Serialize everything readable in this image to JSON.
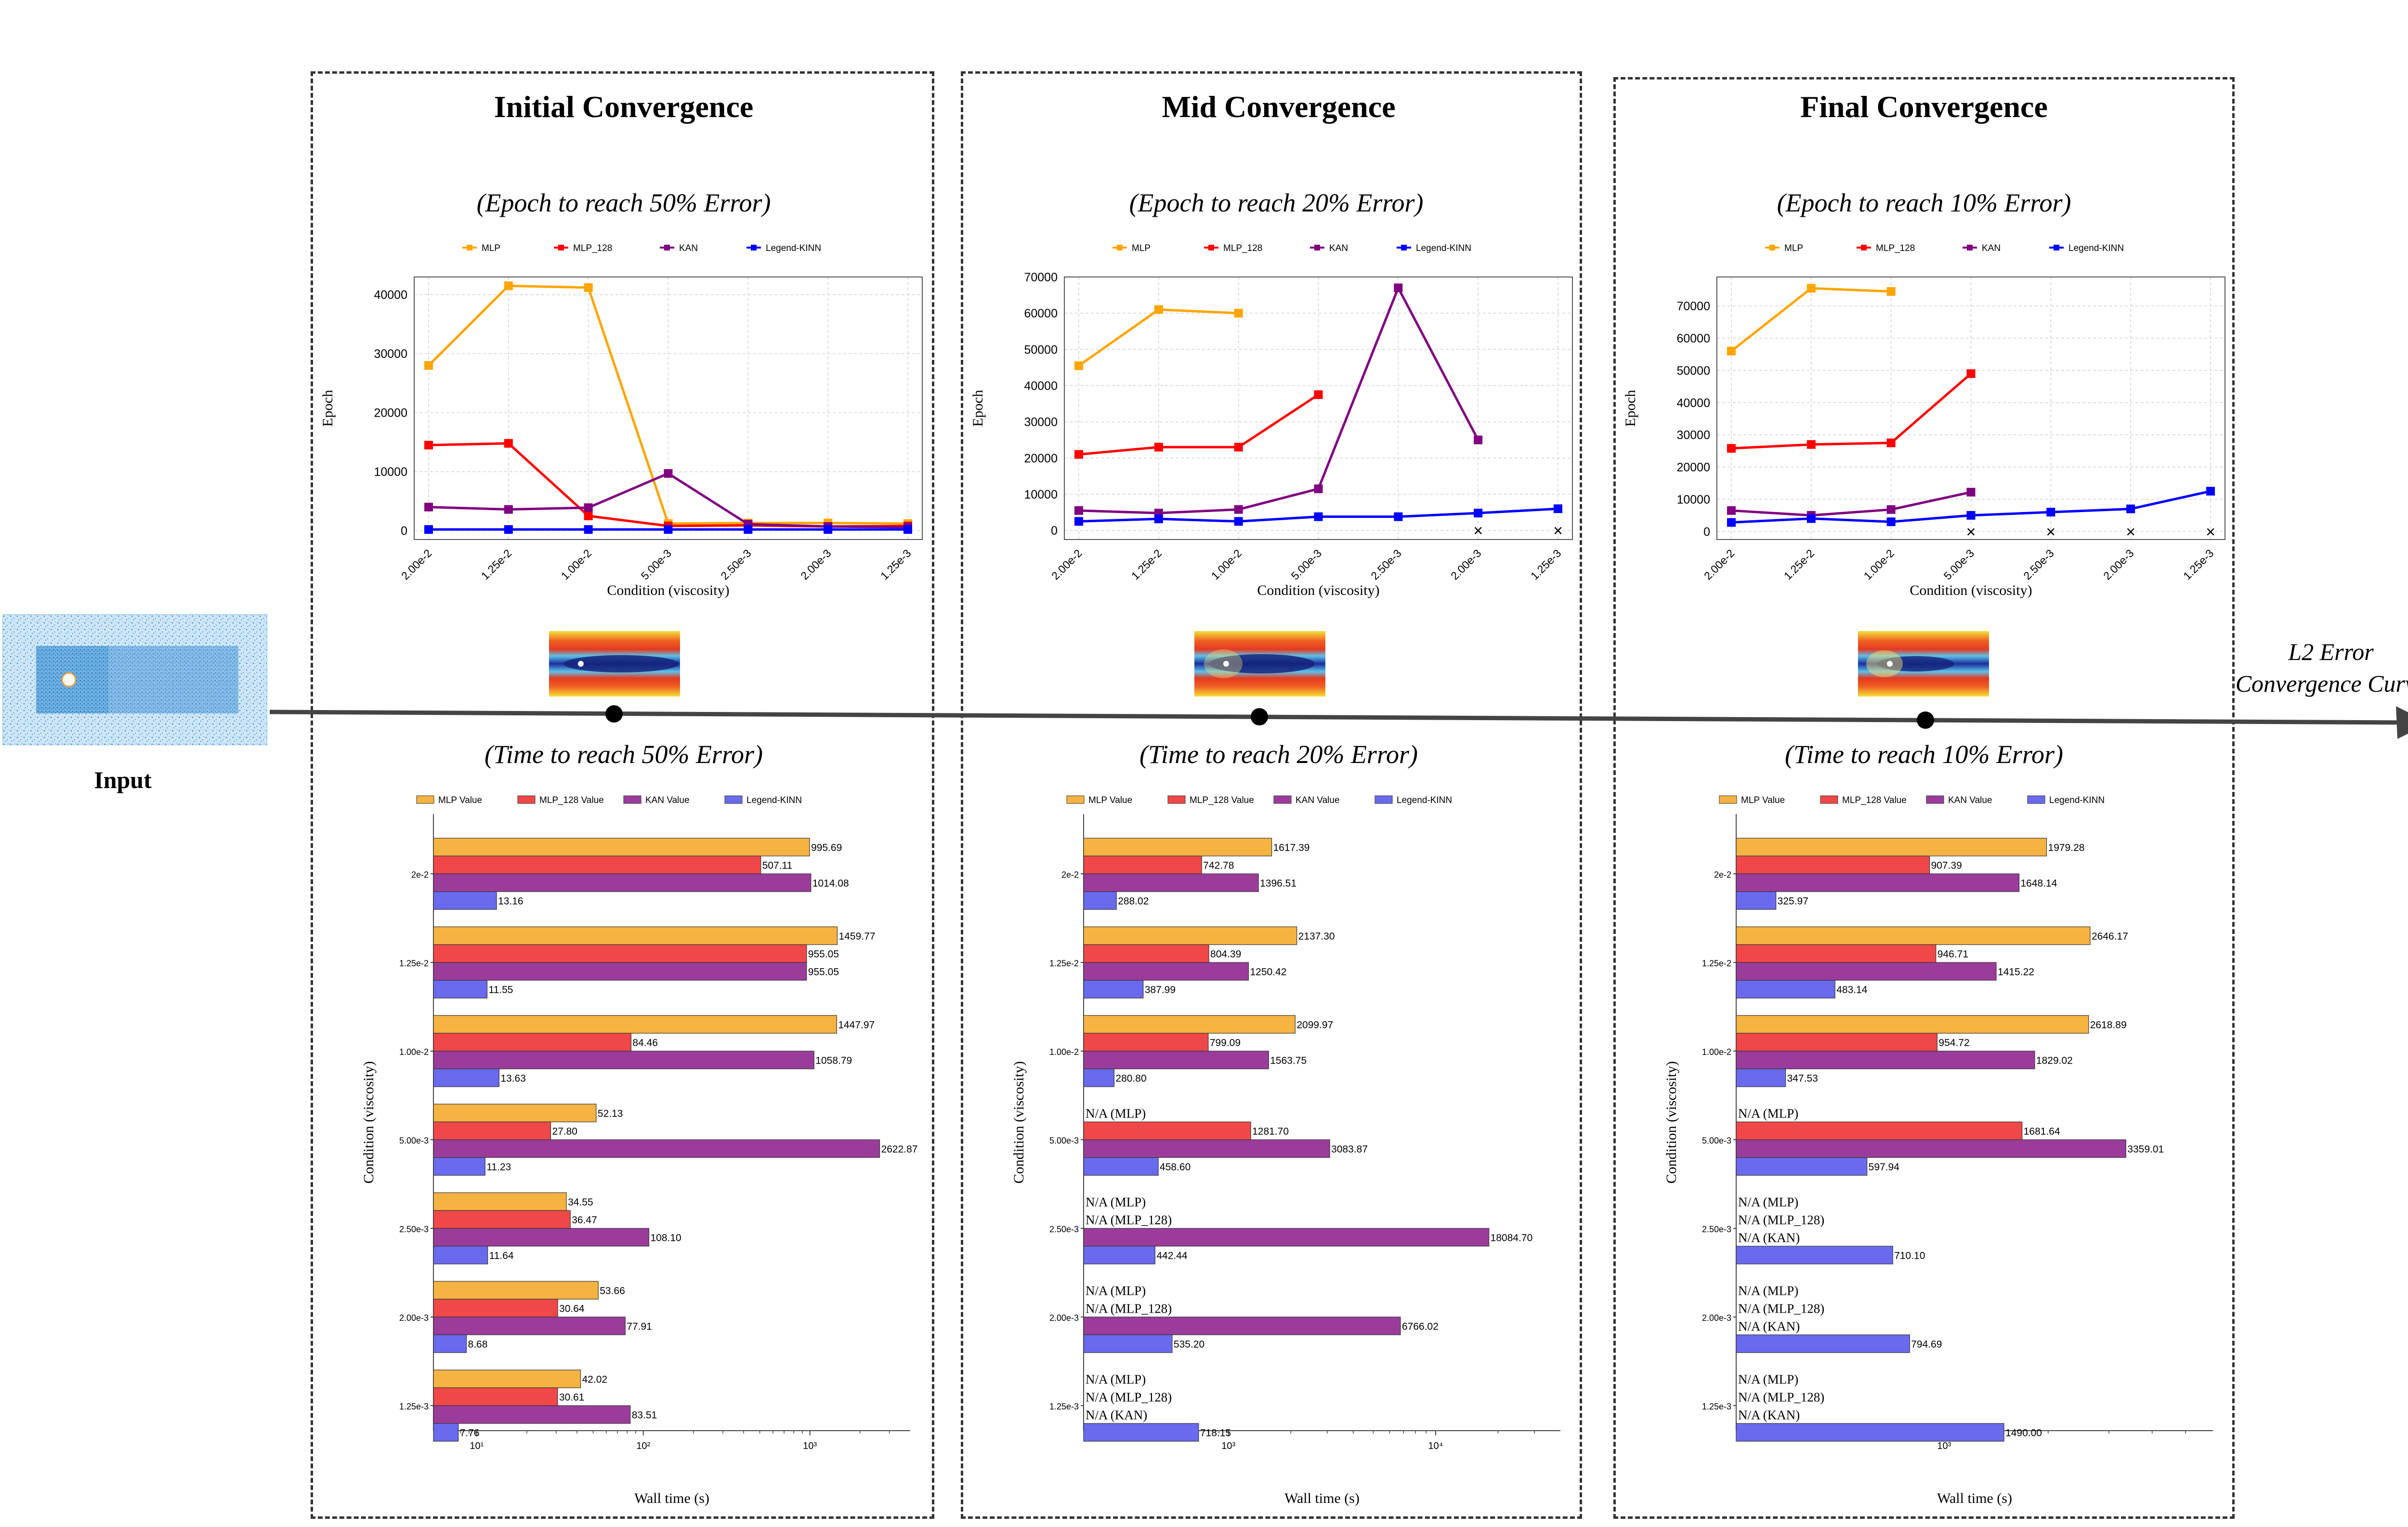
{
  "input_label": "Input",
  "curve_label_line1": "L2 Error",
  "curve_label_line2": "Convergence Curve",
  "colors": {
    "MLP": "#ffa500",
    "MLP_128": "#ff0000",
    "KAN": "#800080",
    "Legend-KINN": "#0000ff",
    "bar_MLP": "#f5b342",
    "bar_MLP_128": "#f04848",
    "bar_KAN": "#9b3c9b",
    "bar_KINN": "#6a6aee"
  },
  "panels": [
    {
      "title": "Initial Convergence",
      "epoch_subtitle": "(Epoch to reach 50% Error)",
      "time_subtitle": "(Time to reach 50% Error)"
    },
    {
      "title": "Mid Convergence",
      "epoch_subtitle": "(Epoch to reach 20% Error)",
      "time_subtitle": "(Time to reach 20% Error)"
    },
    {
      "title": "Final Convergence",
      "epoch_subtitle": "(Epoch to reach 10% Error)",
      "time_subtitle": "(Time to reach 10% Error)"
    }
  ],
  "chart_data": [
    {
      "type": "line",
      "title": "(Epoch to reach 50% Error)",
      "xlabel": "Condition (viscosity)",
      "ylabel": "Epoch",
      "categories": [
        "2.00e-2",
        "1.25e-2",
        "1.00e-2",
        "5.00e-3",
        "2.50e-3",
        "2.00e-3",
        "1.25e-3"
      ],
      "ylim": [
        -1500,
        43000
      ],
      "yticks": [
        0,
        10000,
        20000,
        30000,
        40000
      ],
      "legend": [
        "MLP",
        "MLP_128",
        "KAN",
        "Legend-KINN"
      ],
      "legend_position": "top-center",
      "grid": true,
      "series": [
        {
          "name": "MLP",
          "values": [
            28000,
            41500,
            41200,
            1200,
            1300,
            1300,
            1200
          ]
        },
        {
          "name": "MLP_128",
          "values": [
            14500,
            14800,
            2500,
            800,
            900,
            700,
            800
          ]
        },
        {
          "name": "KAN",
          "values": [
            4000,
            3600,
            3900,
            9700,
            1100,
            700,
            600
          ]
        },
        {
          "name": "Legend-KINN",
          "values": [
            200,
            200,
            200,
            200,
            200,
            200,
            200
          ]
        }
      ],
      "missing": []
    },
    {
      "type": "line",
      "title": "(Epoch to reach 20% Error)",
      "xlabel": "Condition (viscosity)",
      "ylabel": "Epoch",
      "categories": [
        "2.00e-2",
        "1.25e-2",
        "1.00e-2",
        "5.00e-3",
        "2.50e-3",
        "2.00e-3",
        "1.25e-3"
      ],
      "ylim": [
        -2500,
        70000
      ],
      "yticks": [
        0,
        10000,
        20000,
        30000,
        40000,
        50000,
        60000,
        70000
      ],
      "legend": [
        "MLP",
        "MLP_128",
        "KAN",
        "Legend-KINN"
      ],
      "legend_position": "top-center",
      "grid": true,
      "series": [
        {
          "name": "MLP",
          "values": [
            45500,
            61000,
            60000,
            null,
            null,
            null,
            null
          ]
        },
        {
          "name": "MLP_128",
          "values": [
            21000,
            23000,
            23000,
            37500,
            null,
            null,
            null
          ]
        },
        {
          "name": "KAN",
          "values": [
            5500,
            4800,
            5800,
            11500,
            67000,
            25000,
            null
          ]
        },
        {
          "name": "Legend-KINN",
          "values": [
            2500,
            3200,
            2500,
            3800,
            3800,
            4800,
            6000
          ]
        }
      ],
      "missing": [
        "2.00e-3",
        "1.25e-3"
      ]
    },
    {
      "type": "line",
      "title": "(Epoch to reach 10% Error)",
      "xlabel": "Condition (viscosity)",
      "ylabel": "Epoch",
      "categories": [
        "2.00e-2",
        "1.25e-2",
        "1.00e-2",
        "5.00e-3",
        "2.50e-3",
        "2.00e-3",
        "1.25e-3"
      ],
      "ylim": [
        -2500,
        79000
      ],
      "yticks": [
        0,
        10000,
        20000,
        30000,
        40000,
        50000,
        60000,
        70000
      ],
      "legend": [
        "MLP",
        "MLP_128",
        "KAN",
        "Legend-KINN"
      ],
      "legend_position": "top-center",
      "grid": true,
      "series": [
        {
          "name": "MLP",
          "values": [
            56000,
            75500,
            74500,
            null,
            null,
            null,
            null
          ]
        },
        {
          "name": "MLP_128",
          "values": [
            25800,
            27000,
            27500,
            49000,
            null,
            null,
            null
          ]
        },
        {
          "name": "KAN",
          "values": [
            6500,
            5000,
            6800,
            12200,
            null,
            null,
            null
          ]
        },
        {
          "name": "Legend-KINN",
          "values": [
            2800,
            4000,
            3000,
            5000,
            6000,
            7000,
            12500
          ]
        }
      ],
      "missing": [
        "5.00e-3",
        "2.50e-3",
        "2.00e-3",
        "1.25e-3"
      ]
    },
    {
      "type": "bar",
      "orientation": "horizontal",
      "title": "(Time to reach 50% Error)",
      "xlabel": "Wall time (s)",
      "ylabel": "Condition (viscosity)",
      "xscale": "log",
      "xlim": [
        5.5,
        4000
      ],
      "xticks": [
        10,
        100,
        1000
      ],
      "xtick_labels": [
        "10¹",
        "10²",
        "10³"
      ],
      "categories": [
        "2e-2",
        "1.25e-2",
        "1.00e-2",
        "5.00e-3",
        "2.50e-3",
        "2.00e-3",
        "1.25e-3"
      ],
      "legend": [
        "MLP Value",
        "MLP_128 Value",
        "KAN Value",
        "Legend-KINN"
      ],
      "legend_position": "top-center",
      "series": [
        {
          "name": "MLP Value",
          "values": [
            995.69,
            1459.77,
            1447.97,
            52.13,
            34.55,
            53.66,
            42.02
          ]
        },
        {
          "name": "MLP_128 Value",
          "values": [
            507.11,
            955.05,
            84.46,
            27.8,
            36.47,
            30.64,
            30.61
          ]
        },
        {
          "name": "KAN Value",
          "values": [
            1014.08,
            955.05,
            1058.79,
            2622.87,
            108.1,
            77.91,
            83.51
          ]
        },
        {
          "name": "Legend-KINN",
          "values": [
            13.16,
            11.55,
            13.63,
            11.23,
            11.64,
            8.68,
            7.76
          ]
        }
      ],
      "value_labels": [
        [
          "995.69",
          "507.11",
          "1014.08",
          "13.16"
        ],
        [
          "1459.77",
          "955.05",
          "955.05",
          "11.55"
        ],
        [
          "1447.97",
          "84.46",
          "1058.79",
          "13.63"
        ],
        [
          "52.13",
          "27.80",
          "2622.87",
          "11.23"
        ],
        [
          "34.55",
          "36.47",
          "108.10",
          "11.64"
        ],
        [
          "53.66",
          "30.64",
          "77.91",
          "8.68"
        ],
        [
          "42.02",
          "30.61",
          "83.51",
          "7.76"
        ]
      ]
    },
    {
      "type": "bar",
      "orientation": "horizontal",
      "title": "(Time to reach 20% Error)",
      "xlabel": "Wall time (s)",
      "ylabel": "Condition (viscosity)",
      "xscale": "log",
      "xlim": [
        200,
        40000
      ],
      "xticks": [
        1000,
        10000
      ],
      "xtick_labels": [
        "10³",
        "10⁴"
      ],
      "categories": [
        "2e-2",
        "1.25e-2",
        "1.00e-2",
        "5.00e-3",
        "2.50e-3",
        "2.00e-3",
        "1.25e-3"
      ],
      "legend": [
        "MLP Value",
        "MLP_128 Value",
        "KAN Value",
        "Legend-KINN"
      ],
      "legend_position": "top-center",
      "series": [
        {
          "name": "MLP Value",
          "values": [
            1617.39,
            2137.3,
            2099.97,
            null,
            null,
            null,
            null
          ]
        },
        {
          "name": "MLP_128 Value",
          "values": [
            742.78,
            804.39,
            799.09,
            1281.7,
            null,
            null,
            null
          ]
        },
        {
          "name": "KAN Value",
          "values": [
            1396.51,
            1250.42,
            1563.75,
            3083.87,
            18084.7,
            6766.02,
            null
          ]
        },
        {
          "name": "Legend-KINN",
          "values": [
            288.02,
            387.99,
            280.8,
            458.6,
            442.44,
            535.2,
            718.15
          ]
        }
      ],
      "value_labels": [
        [
          "1617.39",
          "742.78",
          "1396.51",
          "288.02"
        ],
        [
          "2137.30",
          "804.39",
          "1250.42",
          "387.99"
        ],
        [
          "2099.97",
          "799.09",
          "1563.75",
          "280.80"
        ],
        [
          "N/A (MLP)",
          "1281.70",
          "3083.87",
          "458.60"
        ],
        [
          "N/A (MLP)",
          "N/A (MLP_128)",
          "18084.70",
          "442.44"
        ],
        [
          "N/A (MLP)",
          "N/A (MLP_128)",
          "6766.02",
          "535.20"
        ],
        [
          "N/A (MLP)",
          "N/A (MLP_128)",
          "N/A (KAN)",
          "718.15"
        ]
      ]
    },
    {
      "type": "bar",
      "orientation": "horizontal",
      "title": "(Time to reach 10% Error)",
      "xlabel": "Wall time (s)",
      "ylabel": "Condition (viscosity)",
      "xscale": "log",
      "xlim": [
        250,
        6000
      ],
      "xticks": [
        1000
      ],
      "xtick_labels": [
        "10³"
      ],
      "categories": [
        "2e-2",
        "1.25e-2",
        "1.00e-2",
        "5.00e-3",
        "2.50e-3",
        "2.00e-3",
        "1.25e-3"
      ],
      "legend": [
        "MLP Value",
        "MLP_128 Value",
        "KAN Value",
        "Legend-KINN"
      ],
      "legend_position": "top-center",
      "series": [
        {
          "name": "MLP Value",
          "values": [
            1979.28,
            2646.17,
            2618.89,
            null,
            null,
            null,
            null
          ]
        },
        {
          "name": "MLP_128 Value",
          "values": [
            907.39,
            946.71,
            954.72,
            1681.64,
            null,
            null,
            null
          ]
        },
        {
          "name": "KAN Value",
          "values": [
            1648.14,
            1415.22,
            1829.02,
            3359.01,
            null,
            null,
            null
          ]
        },
        {
          "name": "Legend-KINN",
          "values": [
            325.97,
            483.14,
            347.53,
            597.94,
            710.1,
            794.69,
            1490.0
          ]
        }
      ],
      "value_labels": [
        [
          "1979.28",
          "907.39",
          "1648.14",
          "325.97"
        ],
        [
          "2646.17",
          "946.71",
          "1415.22",
          "483.14"
        ],
        [
          "2618.89",
          "954.72",
          "1829.02",
          "347.53"
        ],
        [
          "N/A (MLP)",
          "1681.64",
          "3359.01",
          "597.94"
        ],
        [
          "N/A (MLP)",
          "N/A (MLP_128)",
          "N/A (KAN)",
          "710.10"
        ],
        [
          "N/A (MLP)",
          "N/A (MLP_128)",
          "N/A (KAN)",
          "794.69"
        ],
        [
          "N/A (MLP)",
          "N/A (MLP_128)",
          "N/A (KAN)",
          "1490.00"
        ]
      ]
    }
  ]
}
